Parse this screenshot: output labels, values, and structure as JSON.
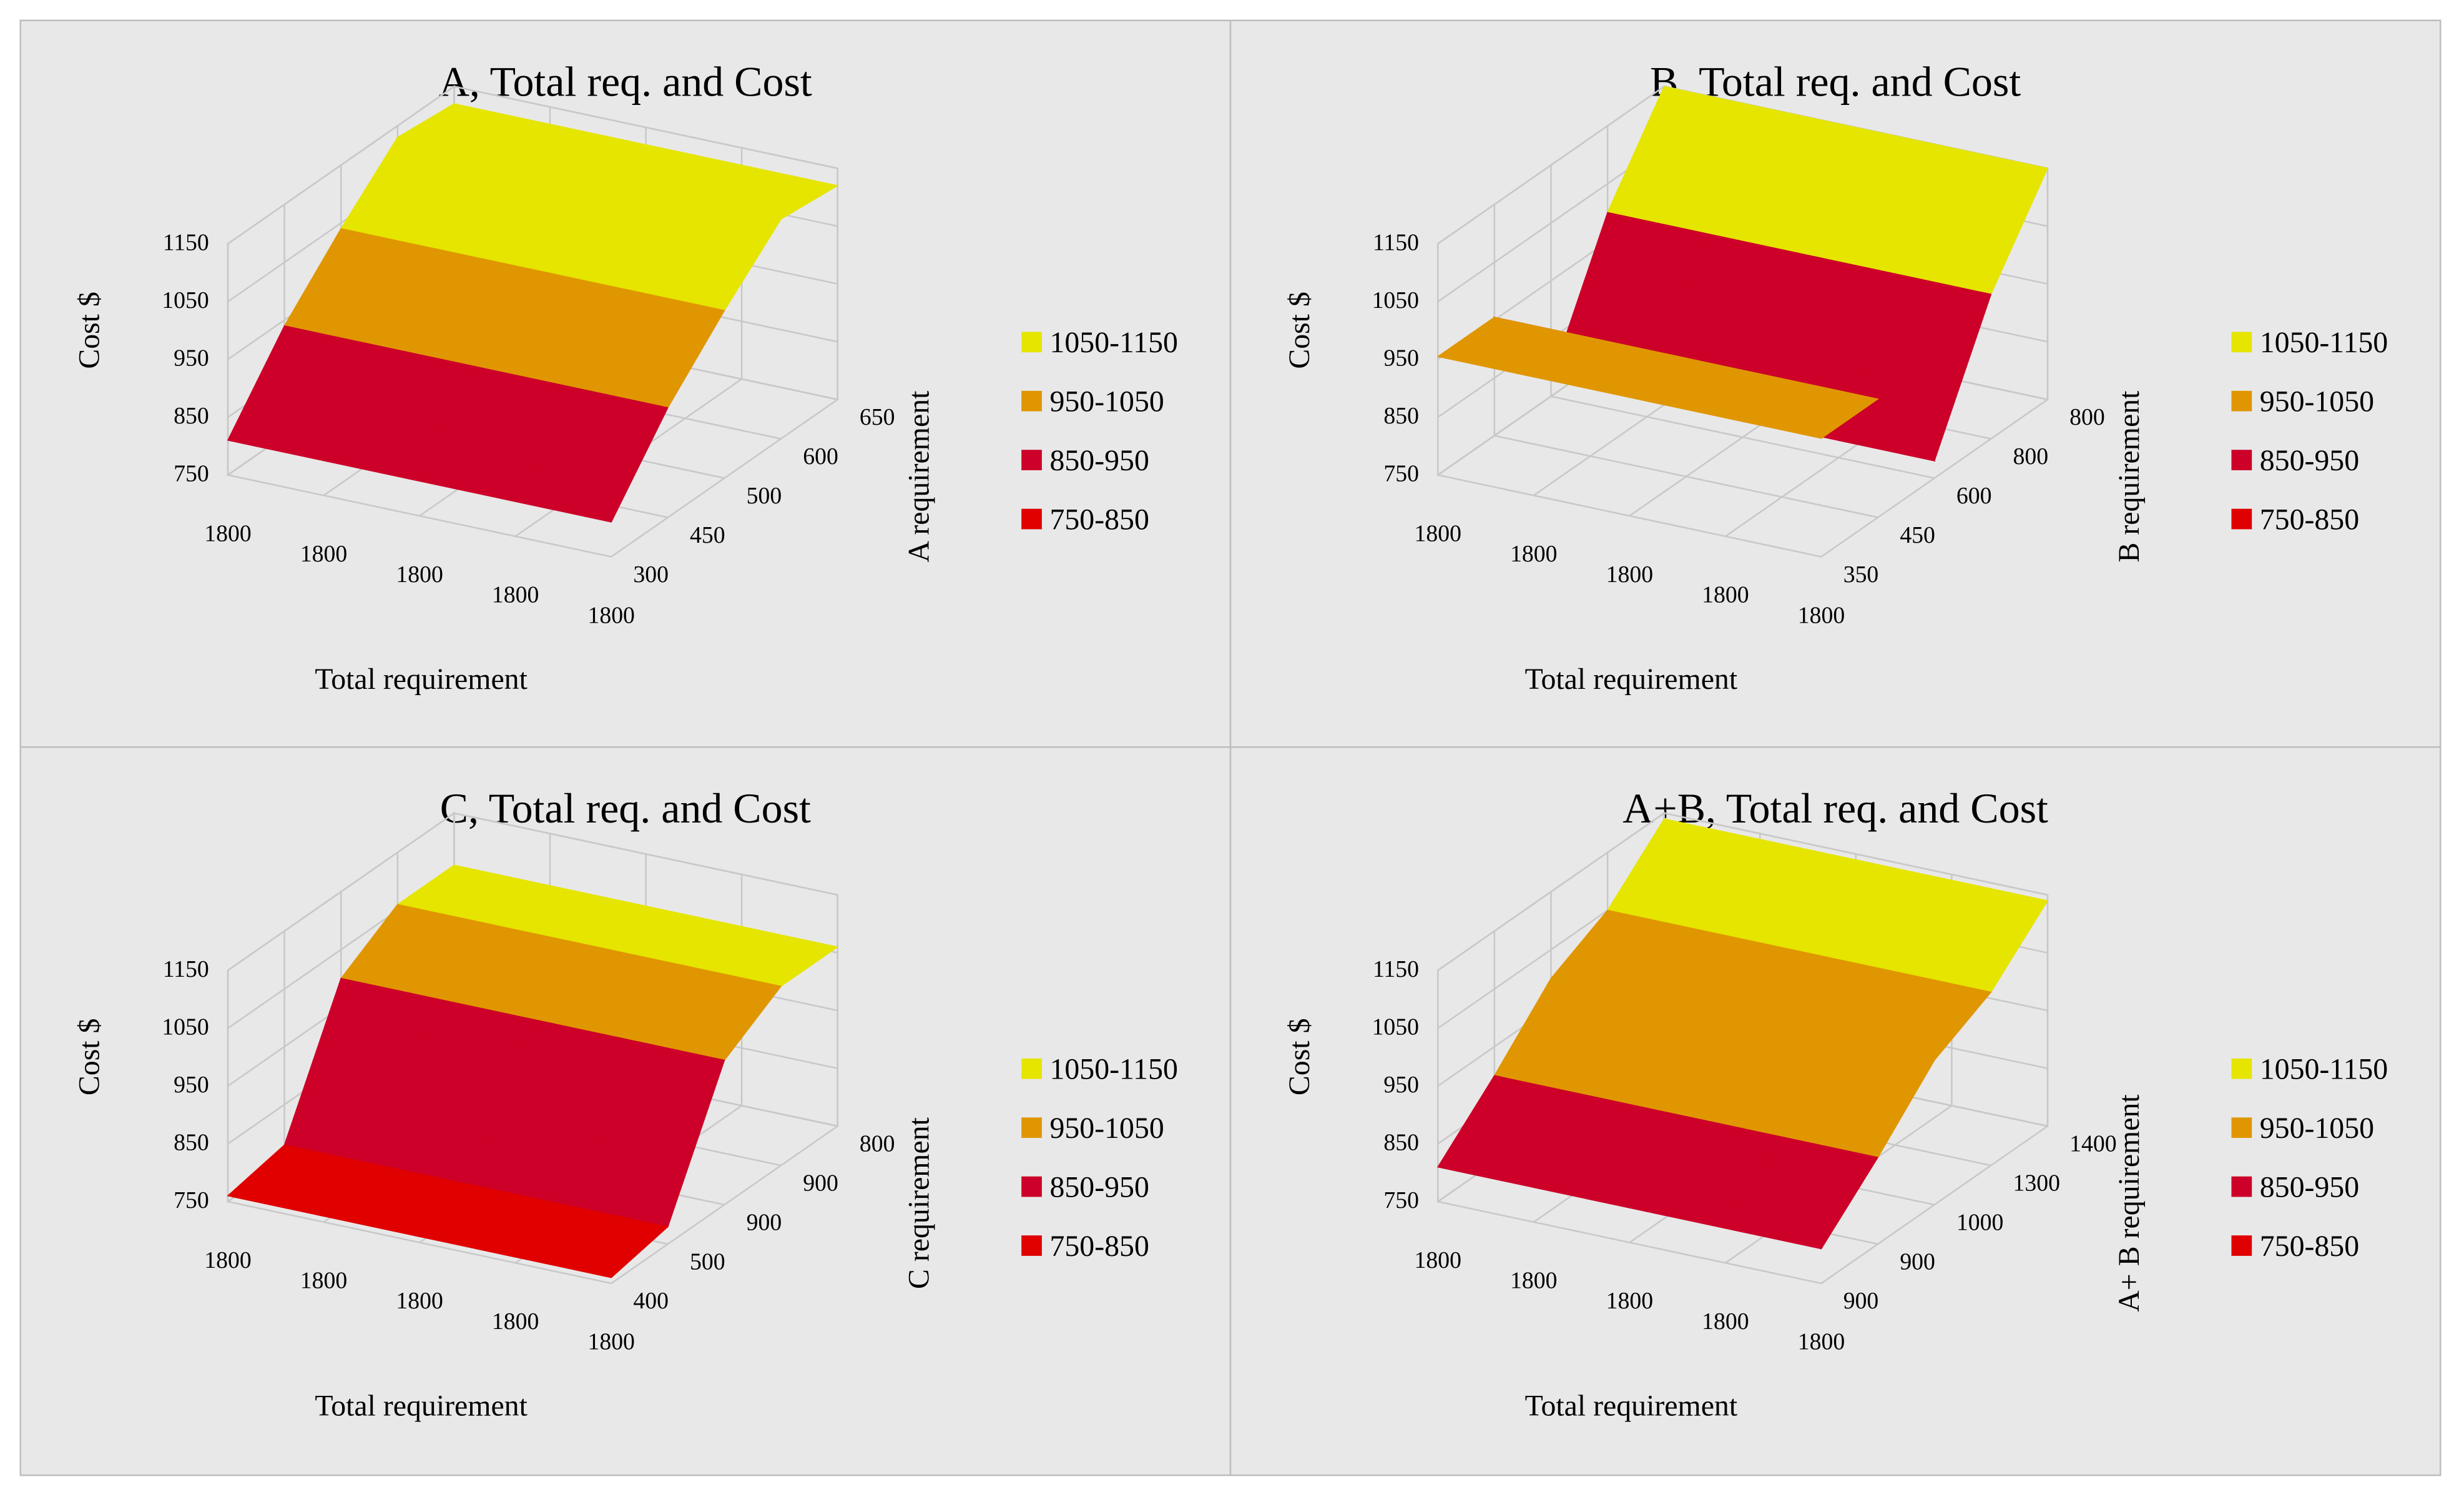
{
  "chart_data": [
    {
      "type": "surface",
      "title": "A, Total req. and Cost",
      "x_label": "Total requirement",
      "z_label": "Cost $",
      "depth_label": "A requirement",
      "categories": [
        "1800",
        "1800",
        "1800",
        "1800",
        "1800"
      ],
      "series": [
        {
          "name": "300",
          "values": [
            810,
            810,
            810,
            810,
            810
          ]
        },
        {
          "name": "450",
          "values": [
            940,
            940,
            940,
            940,
            940
          ]
        },
        {
          "name": "500",
          "values": [
            1040,
            1040,
            1040,
            1040,
            1040
          ]
        },
        {
          "name": "600",
          "values": [
            1130,
            1130,
            1130,
            1130,
            1130
          ]
        },
        {
          "name": "650",
          "values": [
            1120,
            1120,
            1120,
            1120,
            1120
          ]
        }
      ],
      "zlim": [
        750,
        1150
      ],
      "zticks": [
        750,
        850,
        950,
        1050,
        1150
      ],
      "bands": [
        {
          "label": "1050-1150",
          "from": 1050,
          "to": 1150,
          "color": "#e5e500"
        },
        {
          "label": "950-1050",
          "from": 950,
          "to": 1050,
          "color": "#e09600"
        },
        {
          "label": "850-950",
          "from": 850,
          "to": 950,
          "color": "#cc0028"
        },
        {
          "label": "750-850",
          "from": 750,
          "to": 850,
          "color": "#e00000"
        }
      ]
    },
    {
      "type": "surface",
      "title": "B, Total req. and Cost",
      "x_label": "Total requirement",
      "z_label": "Cost $",
      "depth_label": "B requirement",
      "categories": [
        "1800",
        "1800",
        "1800",
        "1800",
        "1800"
      ],
      "series": [
        {
          "name": "350",
          "values": [
            955,
            955,
            955,
            955,
            955
          ]
        },
        {
          "name": "450",
          "values": [
            955,
            955,
            955,
            955,
            955
          ]
        },
        {
          "name": "600",
          "values": [
            780,
            780,
            780,
            780,
            780
          ]
        },
        {
          "name": "800",
          "values": [
            1000,
            1000,
            1000,
            1000,
            1000
          ]
        },
        {
          "name": "800",
          "values": [
            1150,
            1150,
            1150,
            1150,
            1150
          ]
        }
      ],
      "zlim": [
        750,
        1150
      ],
      "zticks": [
        750,
        850,
        950,
        1050,
        1150
      ],
      "bands": [
        {
          "label": "1050-1150",
          "from": 1050,
          "to": 1150,
          "color": "#e5e500"
        },
        {
          "label": "950-1050",
          "from": 950,
          "to": 1050,
          "color": "#e09600"
        },
        {
          "label": "850-950",
          "from": 850,
          "to": 950,
          "color": "#cc0028"
        },
        {
          "label": "750-850",
          "from": 750,
          "to": 850,
          "color": "#e00000"
        }
      ]
    },
    {
      "type": "surface",
      "title": "C, Total req. and Cost",
      "x_label": "Total requirement",
      "z_label": "Cost $",
      "depth_label": "C requirement",
      "categories": [
        "1800",
        "1800",
        "1800",
        "1800",
        "1800"
      ],
      "series": [
        {
          "name": "400",
          "values": [
            760,
            760,
            760,
            760,
            760
          ]
        },
        {
          "name": "500",
          "values": [
            780,
            780,
            780,
            780,
            780
          ]
        },
        {
          "name": "900",
          "values": [
            1000,
            1000,
            1000,
            1000,
            1000
          ]
        },
        {
          "name": "900",
          "values": [
            1060,
            1060,
            1060,
            1060,
            1060
          ]
        },
        {
          "name": "800",
          "values": [
            1060,
            1060,
            1060,
            1060,
            1060
          ]
        }
      ],
      "zlim": [
        750,
        1150
      ],
      "zticks": [
        750,
        850,
        950,
        1050,
        1150
      ],
      "bands": [
        {
          "label": "1050-1150",
          "from": 1050,
          "to": 1150,
          "color": "#e5e500"
        },
        {
          "label": "950-1050",
          "from": 950,
          "to": 1050,
          "color": "#e09600"
        },
        {
          "label": "850-950",
          "from": 850,
          "to": 950,
          "color": "#cc0028"
        },
        {
          "label": "750-850",
          "from": 750,
          "to": 850,
          "color": "#e00000"
        }
      ]
    },
    {
      "type": "surface",
      "title": "A+B, Total req. and Cost",
      "x_label": "Total requirement",
      "z_label": "Cost $",
      "depth_label": "A+ B requirement",
      "categories": [
        "1800",
        "1800",
        "1800",
        "1800",
        "1800"
      ],
      "series": [
        {
          "name": "900",
          "values": [
            810,
            810,
            810,
            810,
            810
          ]
        },
        {
          "name": "900",
          "values": [
            900,
            900,
            900,
            900,
            900
          ]
        },
        {
          "name": "1000",
          "values": [
            1000,
            1000,
            1000,
            1000,
            1000
          ]
        },
        {
          "name": "1300",
          "values": [
            1050,
            1050,
            1050,
            1050,
            1050
          ]
        },
        {
          "name": "1400",
          "values": [
            1140,
            1140,
            1140,
            1140,
            1140
          ]
        }
      ],
      "zlim": [
        750,
        1150
      ],
      "zticks": [
        750,
        850,
        950,
        1050,
        1150
      ],
      "bands": [
        {
          "label": "1050-1150",
          "from": 1050,
          "to": 1150,
          "color": "#e5e500"
        },
        {
          "label": "950-1050",
          "from": 950,
          "to": 1050,
          "color": "#e09600"
        },
        {
          "label": "850-950",
          "from": 850,
          "to": 950,
          "color": "#cc0028"
        },
        {
          "label": "750-850",
          "from": 750,
          "to": 850,
          "color": "#e00000"
        }
      ]
    }
  ]
}
